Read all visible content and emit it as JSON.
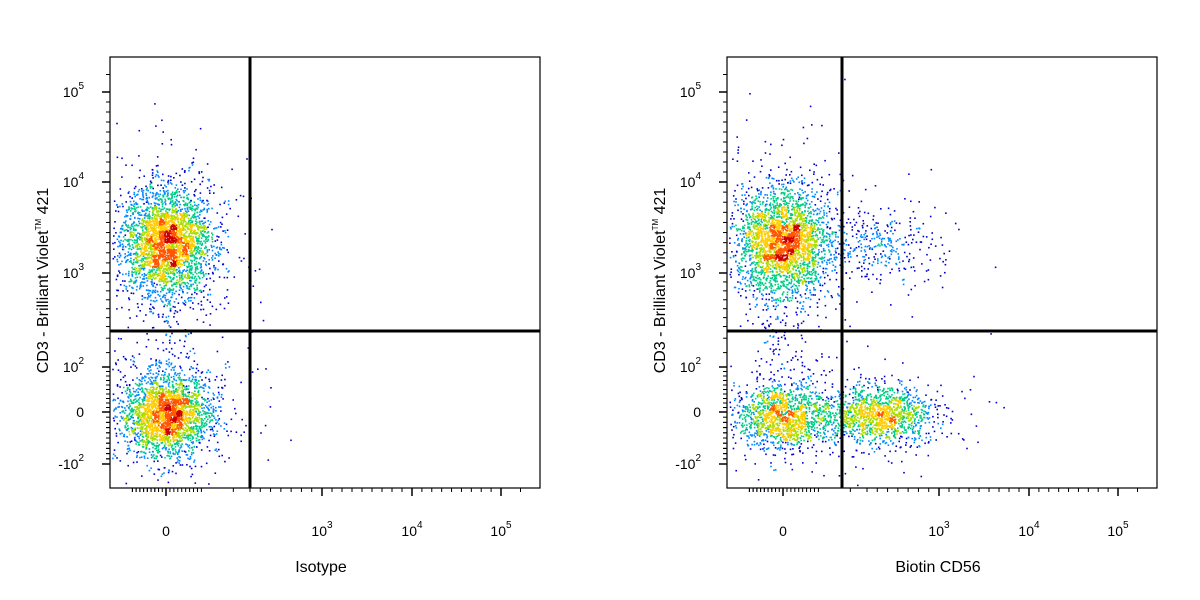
{
  "chart_data": [
    {
      "type": "scatter",
      "subtype": "flow-cytometry-density-dot-plot",
      "xlabel": "Isotype",
      "ylabel_main": "CD3 - Brilliant Violet",
      "ylabel_tm": "TM",
      "ylabel_tail": " 421",
      "x_scale": "biexponential",
      "y_scale": "biexponential",
      "x_ticks": [
        {
          "value": 0,
          "base": "0",
          "exp": ""
        },
        {
          "value": 1000,
          "base": "10",
          "exp": "3"
        },
        {
          "value": 10000,
          "base": "10",
          "exp": "4"
        },
        {
          "value": 100000,
          "base": "10",
          "exp": "5"
        }
      ],
      "y_ticks": [
        {
          "value": -100,
          "base": "-10",
          "exp": "2"
        },
        {
          "value": 0,
          "base": "0",
          "exp": ""
        },
        {
          "value": 100,
          "base": "10",
          "exp": "2"
        },
        {
          "value": 1000,
          "base": "10",
          "exp": "3"
        },
        {
          "value": 10000,
          "base": "10",
          "exp": "4"
        },
        {
          "value": 100000,
          "base": "10",
          "exp": "5"
        }
      ],
      "quadrant_gate": {
        "x": 300,
        "y": 350
      },
      "populations": [
        {
          "x_center": 0,
          "y_center": 2200,
          "relative_density": 1.0
        },
        {
          "x_center": 0,
          "y_center": 0,
          "relative_density": 0.8
        }
      ],
      "density_colors": [
        "#0000cc",
        "#0088ff",
        "#00cc88",
        "#aadd00",
        "#ffcc00",
        "#ff5500",
        "#cc0000"
      ],
      "grid": false,
      "legend": "none"
    },
    {
      "type": "scatter",
      "subtype": "flow-cytometry-density-dot-plot",
      "xlabel": "Biotin CD56",
      "ylabel_main": "CD3 - Brilliant Violet",
      "ylabel_tm": "TM",
      "ylabel_tail": " 421",
      "x_scale": "biexponential",
      "y_scale": "biexponential",
      "x_ticks": [
        {
          "value": 0,
          "base": "0",
          "exp": ""
        },
        {
          "value": 1000,
          "base": "10",
          "exp": "3"
        },
        {
          "value": 10000,
          "base": "10",
          "exp": "4"
        },
        {
          "value": 100000,
          "base": "10",
          "exp": "5"
        }
      ],
      "y_ticks": [
        {
          "value": -100,
          "base": "-10",
          "exp": "2"
        },
        {
          "value": 0,
          "base": "0",
          "exp": ""
        },
        {
          "value": 100,
          "base": "10",
          "exp": "2"
        },
        {
          "value": 1000,
          "base": "10",
          "exp": "3"
        },
        {
          "value": 10000,
          "base": "10",
          "exp": "4"
        },
        {
          "value": 100000,
          "base": "10",
          "exp": "5"
        }
      ],
      "quadrant_gate": {
        "x": 150,
        "y": 350
      },
      "populations": [
        {
          "x_center": 0,
          "y_center": 2200,
          "relative_density": 1.0
        },
        {
          "x_center": 500,
          "y_center": 2000,
          "relative_density": 0.15
        },
        {
          "x_center": 0,
          "y_center": 0,
          "relative_density": 0.55
        },
        {
          "x_center": 500,
          "y_center": 0,
          "relative_density": 0.5
        }
      ],
      "density_colors": [
        "#0000cc",
        "#0088ff",
        "#00cc88",
        "#aadd00",
        "#ffcc00",
        "#ff5500",
        "#cc0000"
      ],
      "grid": false,
      "legend": "none"
    }
  ]
}
